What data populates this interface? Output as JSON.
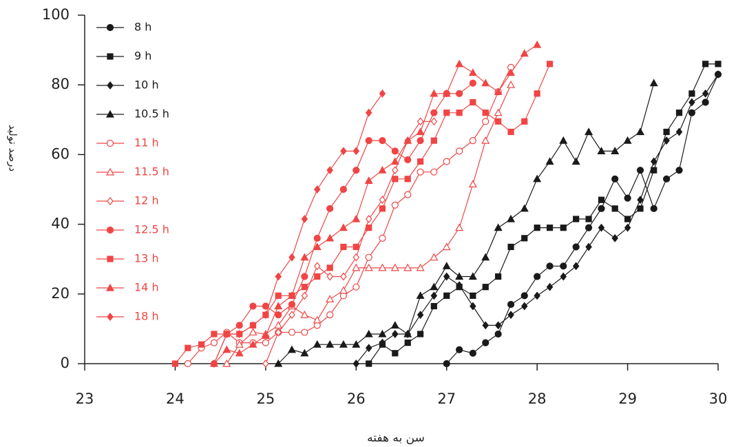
{
  "chart_data": {
    "type": "line",
    "xlabel": "سن به هفته",
    "ylabel": "درصد تولید",
    "xlim": [
      23,
      30
    ],
    "ylim": [
      0,
      100
    ],
    "xticks": [
      23,
      24,
      25,
      26,
      27,
      28,
      29,
      30
    ],
    "yticks": [
      0,
      20,
      40,
      60,
      80,
      100
    ],
    "legend": "upper left",
    "series": [
      {
        "name": "8 h",
        "color": "#1a1a1a",
        "marker": "circle",
        "filled": true,
        "x": [
          27,
          27.14,
          27.29,
          27.43,
          27.57,
          27.71,
          27.86,
          28,
          28.14,
          28.29,
          28.43,
          28.57,
          28.71,
          28.86,
          29,
          29.14,
          29.29,
          29.43,
          29.57,
          29.71,
          29.86,
          30
        ],
        "values": [
          0,
          4,
          3,
          6,
          8.5,
          17,
          19.5,
          25,
          28,
          28,
          33.5,
          39,
          44.5,
          53,
          47.5,
          55.5,
          44.5,
          53,
          55.5,
          72,
          75,
          83
        ]
      },
      {
        "name": "9 h",
        "color": "#1a1a1a",
        "marker": "square",
        "filled": true,
        "x": [
          26.14,
          26.29,
          26.43,
          26.57,
          26.71,
          26.86,
          27,
          27.14,
          27.29,
          27.43,
          27.57,
          27.71,
          27.86,
          28,
          28.14,
          28.29,
          28.43,
          28.57,
          28.71,
          28.86,
          29,
          29.14,
          29.29,
          29.43,
          29.57,
          29.71,
          29.86,
          30
        ],
        "values": [
          0,
          5.5,
          3,
          6,
          8.5,
          16.5,
          19.5,
          22,
          19.5,
          22,
          25,
          33.5,
          36,
          39,
          39,
          39,
          41.5,
          41.5,
          47,
          44.5,
          41.5,
          44.5,
          55.5,
          66.5,
          72,
          77.5,
          86,
          86
        ]
      },
      {
        "name": "10 h",
        "color": "#1a1a1a",
        "marker": "diamond",
        "filled": true,
        "x": [
          26,
          26.14,
          26.29,
          26.43,
          26.57,
          26.71,
          26.86,
          27,
          27.14,
          27.29,
          27.43,
          27.57,
          27.71,
          27.86,
          28,
          28.14,
          28.29,
          28.43,
          28.57,
          28.71,
          28.86,
          29,
          29.14,
          29.29,
          29.43,
          29.57,
          29.71,
          29.86,
          30
        ],
        "values": [
          0,
          4.5,
          6,
          8.5,
          8.5,
          14,
          19.5,
          25,
          22.5,
          16.5,
          11,
          11,
          14,
          16.5,
          19.5,
          22,
          25,
          28,
          33.5,
          39,
          36,
          39,
          47,
          58,
          64,
          66.5,
          75,
          77.5,
          83
        ]
      },
      {
        "name": "10.5 h",
        "color": "#1a1a1a",
        "marker": "triangle",
        "filled": true,
        "x": [
          25.14,
          25.29,
          25.43,
          25.57,
          25.71,
          25.86,
          26,
          26.14,
          26.29,
          26.43,
          26.57,
          26.71,
          26.86,
          27,
          27.14,
          27.29,
          27.43,
          27.57,
          27.71,
          27.86,
          28,
          28.14,
          28.29,
          28.43,
          28.57,
          28.71,
          28.86,
          29,
          29.14,
          29.29
        ],
        "values": [
          0,
          4,
          3,
          5.5,
          5.5,
          5.5,
          5.5,
          8.5,
          8.5,
          11,
          8.5,
          19.5,
          22,
          28,
          25,
          25,
          30.5,
          39,
          41.5,
          44.5,
          53,
          58,
          64,
          58,
          66.5,
          61,
          61,
          64,
          66.5,
          80.5
        ]
      },
      {
        "name": "11 h",
        "color": "#f04545",
        "marker": "circle",
        "filled": false,
        "x": [
          24.14,
          24.29,
          24.43,
          24.57,
          24.71,
          24.86,
          25,
          25.14,
          25.29,
          25.43,
          25.57,
          25.71,
          25.86,
          26,
          26.14,
          26.29,
          26.43,
          26.57,
          26.71,
          26.86,
          27,
          27.14,
          27.29,
          27.43,
          27.57,
          27.71
        ],
        "values": [
          0,
          4.5,
          6,
          9,
          6,
          6,
          6,
          9,
          9,
          9,
          11,
          14,
          19.5,
          22,
          30.5,
          36,
          45.5,
          48.5,
          55,
          55,
          58,
          61,
          64,
          69.5,
          78,
          85
        ]
      },
      {
        "name": "11.5 h",
        "color": "#f04545",
        "marker": "triangle",
        "filled": false,
        "x": [
          24.57,
          24.71,
          24.86,
          25,
          25.14,
          25.29,
          25.43,
          25.57,
          25.71,
          25.86,
          26,
          26.14,
          26.29,
          26.43,
          26.57,
          26.71,
          26.86,
          27,
          27.14,
          27.29,
          27.43,
          27.57,
          27.71
        ],
        "values": [
          0,
          5.5,
          9,
          8.5,
          11,
          16.5,
          14,
          12.5,
          18.5,
          21,
          27.5,
          27.5,
          27.5,
          27.5,
          27.5,
          27.5,
          30.5,
          33.5,
          39,
          51.5,
          64,
          72,
          80
        ]
      },
      {
        "name": "12 h",
        "color": "#f04545",
        "marker": "diamond",
        "filled": false,
        "x": [
          25,
          25.14,
          25.29,
          25.43,
          25.57,
          25.71,
          25.86,
          26,
          26.14,
          26.29,
          26.43,
          26.57,
          26.71,
          26.86
        ],
        "values": [
          0,
          9,
          14,
          19.5,
          28,
          25,
          25,
          30.5,
          41.5,
          47,
          55.5,
          64,
          69.5,
          69.5
        ]
      },
      {
        "name": "12.5 h",
        "color": "#f04545",
        "marker": "circle",
        "filled": true,
        "x": [
          24.43,
          24.57,
          24.71,
          24.86,
          25,
          25.14,
          25.29,
          25.43,
          25.57,
          25.71,
          25.86,
          26,
          26.14,
          26.29,
          26.43,
          26.57,
          26.71,
          26.86,
          27,
          27.14,
          27.29
        ],
        "values": [
          0,
          8.5,
          11,
          16.5,
          16.5,
          14,
          17,
          25,
          36,
          44.5,
          50,
          55.5,
          64,
          64,
          61,
          58.5,
          64,
          72,
          77.5,
          77.5,
          80.5
        ]
      },
      {
        "name": "13 h",
        "color": "#f04545",
        "marker": "square",
        "filled": true,
        "x": [
          24,
          24.14,
          24.29,
          24.43,
          24.57,
          24.71,
          24.86,
          25,
          25.14,
          25.29,
          25.43,
          25.57,
          25.71,
          25.86,
          26,
          26.14,
          26.29,
          26.43,
          26.57,
          26.71,
          26.86,
          27,
          27.14,
          27.29,
          27.43,
          27.57,
          27.71,
          27.86,
          28,
          28.14
        ],
        "values": [
          0,
          4.5,
          5.5,
          8.5,
          8.5,
          8.5,
          11,
          14,
          19.5,
          19.5,
          22,
          25,
          27.5,
          33.5,
          33.5,
          39,
          44.5,
          53,
          53,
          58,
          64,
          72,
          72,
          75,
          72,
          69.5,
          66.5,
          69.5,
          77.5,
          86
        ]
      },
      {
        "name": "14 h",
        "color": "#f04545",
        "marker": "triangle",
        "filled": true,
        "x": [
          24.43,
          24.57,
          24.71,
          24.86,
          25,
          25.14,
          25.29,
          25.43,
          25.57,
          25.71,
          25.86,
          26,
          26.14,
          26.29,
          26.43,
          26.57,
          26.71,
          26.86,
          27,
          27.14,
          27.29,
          27.43,
          27.57,
          27.71,
          27.86,
          28
        ],
        "values": [
          0,
          4,
          3,
          5.5,
          8,
          16.5,
          19.5,
          30.5,
          33.5,
          36,
          39,
          41.5,
          52.5,
          55.5,
          58,
          64,
          66.5,
          77.5,
          77.5,
          86,
          83.5,
          80.5,
          78,
          83.5,
          89,
          91.5
        ]
      },
      {
        "name": "18 h",
        "color": "#f04545",
        "marker": "diamond",
        "filled": true,
        "x": [
          24.43,
          24.57,
          24.71,
          24.86,
          25,
          25.14,
          25.29,
          25.43,
          25.57,
          25.71,
          25.86,
          26,
          26.14,
          26.29
        ],
        "values": [
          0,
          8.5,
          8.5,
          11,
          14,
          25,
          30.5,
          41.5,
          50,
          55.5,
          61,
          61,
          72,
          77.5
        ]
      }
    ]
  }
}
